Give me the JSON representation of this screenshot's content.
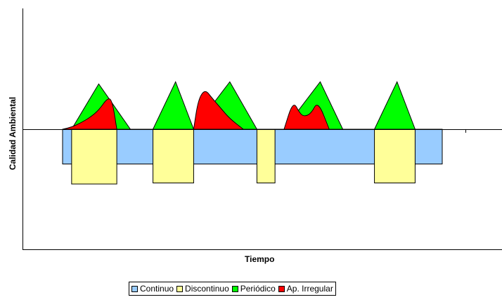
{
  "chart_data": {
    "type": "area",
    "title": "",
    "xlabel": "Tiempo",
    "ylabel": "Calidad Ambiental",
    "xlim": [
      0,
      100
    ],
    "ylim": [
      -100,
      100
    ],
    "grid": false,
    "legend_position": "bottom",
    "series": [
      {
        "name": "Continuo",
        "color": "#99ccff",
        "shape": "band",
        "blocks": [
          [
            12,
            96,
            0,
            -33
          ]
        ]
      },
      {
        "name": "Discontinuo",
        "color": "#ffff99",
        "shape": "band",
        "blocks": [
          [
            14,
            24,
            0,
            -52
          ],
          [
            32,
            41,
            0,
            -51
          ],
          [
            55,
            59,
            0,
            -51
          ],
          [
            81,
            90,
            0,
            -51
          ]
        ]
      },
      {
        "name": "Periódico",
        "color": "#00ff00",
        "shape": "peaks",
        "peaks": [
          [
            14,
            20,
            27,
            43
          ],
          [
            32,
            37,
            41,
            45
          ],
          [
            41,
            49,
            55,
            45
          ],
          [
            61,
            69,
            74,
            45
          ],
          [
            81,
            86,
            90,
            45
          ]
        ]
      },
      {
        "name": "Ap. Irregular",
        "color": "#ff0000",
        "shape": "curve",
        "points": [
          [
            12,
            0
          ],
          [
            14,
            2
          ],
          [
            16,
            6
          ],
          [
            18,
            11
          ],
          [
            20,
            18
          ],
          [
            22,
            30
          ],
          [
            23,
            27
          ],
          [
            24,
            0
          ],
          [
            41,
            0
          ],
          [
            42,
            28
          ],
          [
            43.5,
            38
          ],
          [
            45,
            30
          ],
          [
            47,
            20
          ],
          [
            49,
            10
          ],
          [
            52,
            0
          ],
          [
            61,
            0
          ],
          [
            63,
            27
          ],
          [
            64.5,
            15
          ],
          [
            65.5,
            12
          ],
          [
            67,
            15
          ],
          [
            68.5,
            27
          ],
          [
            71,
            0
          ]
        ]
      }
    ]
  }
}
